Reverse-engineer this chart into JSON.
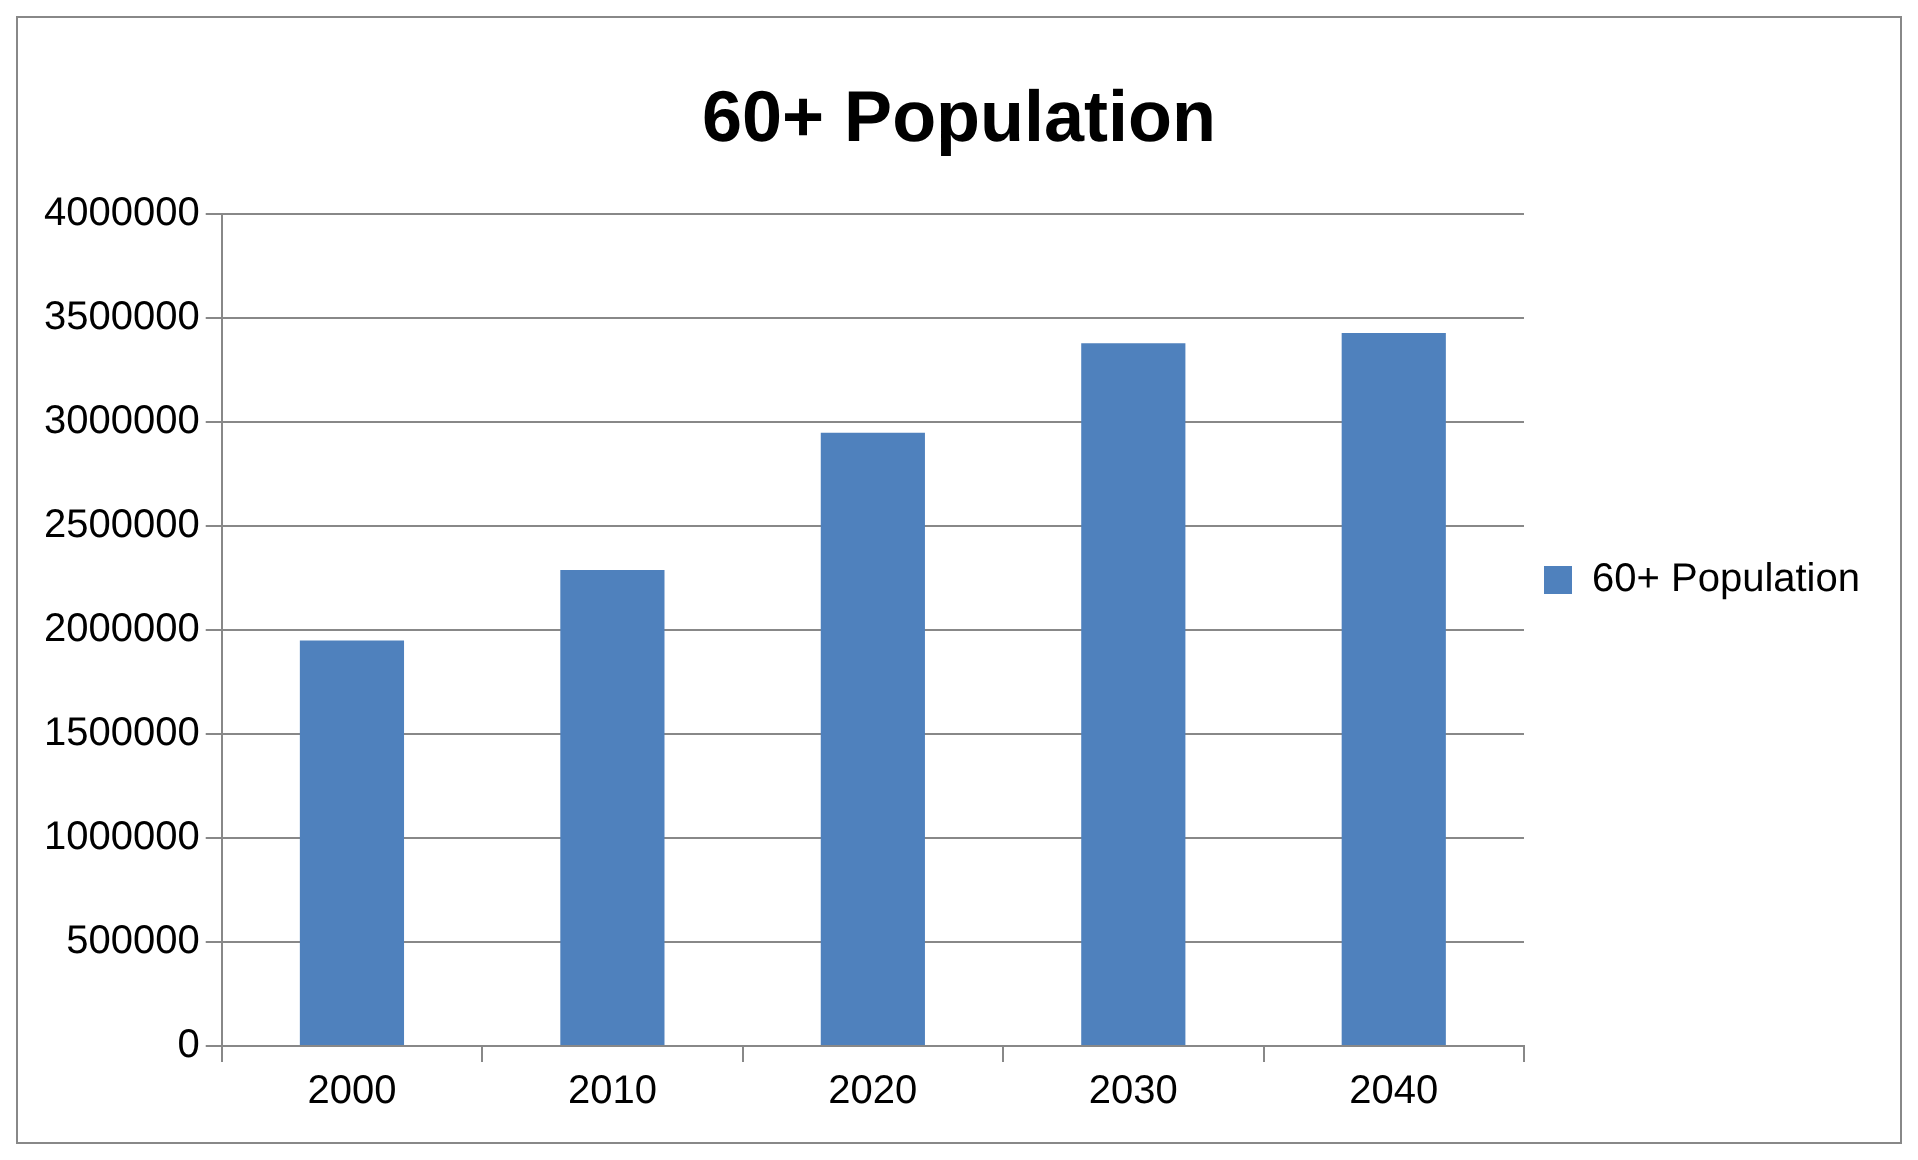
{
  "chart_data": {
    "type": "bar",
    "title": "60+ Population",
    "categories": [
      "2000",
      "2010",
      "2020",
      "2030",
      "2040"
    ],
    "series": [
      {
        "name": "60+ Population",
        "color": "#4f81bd",
        "values": [
          1950000,
          2290000,
          2950000,
          3380000,
          3430000
        ]
      }
    ],
    "ylim": [
      0,
      4000000
    ],
    "yticks": [
      0,
      500000,
      1000000,
      1500000,
      2000000,
      2500000,
      3000000,
      3500000,
      4000000
    ],
    "grid": "y",
    "legend": "right"
  }
}
